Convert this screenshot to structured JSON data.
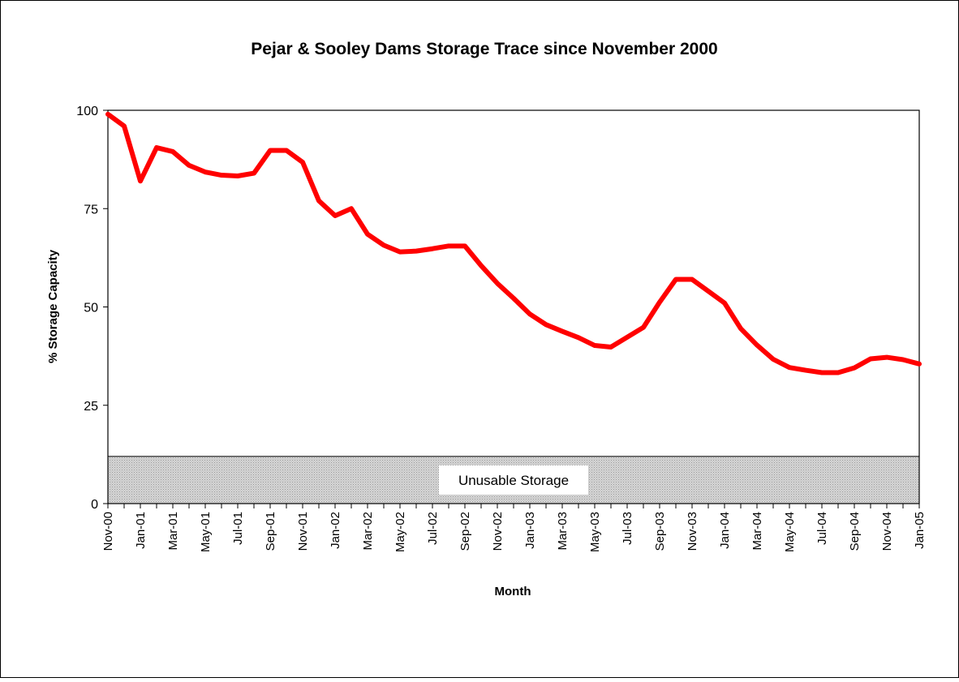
{
  "chart_data": {
    "type": "line",
    "title": "Pejar & Sooley Dams Storage Trace since November 2000",
    "xlabel": "Month",
    "ylabel": "% Storage Capacity",
    "ylim": [
      0,
      100
    ],
    "yticks": [
      0,
      25,
      50,
      75,
      100
    ],
    "xtick_labels": [
      "Nov-00",
      "Jan-01",
      "Mar-01",
      "May-01",
      "Jul-01",
      "Sep-01",
      "Nov-01",
      "Jan-02",
      "Mar-02",
      "May-02",
      "Jul-02",
      "Sep-02",
      "Nov-02",
      "Jan-03",
      "Mar-03",
      "May-03",
      "Jul-03",
      "Sep-03",
      "Nov-03",
      "Jan-04",
      "Mar-04",
      "May-04",
      "Jul-04",
      "Sep-04",
      "Nov-04",
      "Jan-05"
    ],
    "grid": false,
    "legend": "none",
    "line_color": "#ff0000",
    "band": {
      "label": "Unusable Storage",
      "from": 0,
      "to": 12,
      "color": "#c8c8c8"
    },
    "series": [
      {
        "x": [
          "Nov-00",
          "Dec-00",
          "Jan-01",
          "Feb-01",
          "Mar-01",
          "Apr-01",
          "May-01",
          "Jun-01",
          "Jul-01",
          "Aug-01",
          "Sep-01",
          "Oct-01",
          "Nov-01",
          "Dec-01",
          "Jan-02",
          "Feb-02",
          "Mar-02",
          "Apr-02",
          "May-02",
          "Jun-02",
          "Jul-02",
          "Aug-02",
          "Sep-02",
          "Oct-02",
          "Nov-02",
          "Dec-02",
          "Jan-03",
          "Feb-03",
          "Mar-03",
          "Apr-03",
          "May-03",
          "Jun-03",
          "Jul-03",
          "Aug-03",
          "Sep-03",
          "Oct-03",
          "Nov-03",
          "Dec-03",
          "Jan-04",
          "Feb-04",
          "Mar-04",
          "Apr-04",
          "May-04",
          "Jun-04",
          "Jul-04",
          "Aug-04",
          "Sep-04",
          "Oct-04",
          "Nov-04",
          "Dec-04",
          "Jan-05"
        ],
        "values": [
          99,
          96,
          82,
          90.5,
          89.5,
          86,
          84.3,
          83.5,
          83.3,
          84,
          89.8,
          89.8,
          86.8,
          77,
          73.2,
          75,
          68.5,
          65.7,
          64,
          64.2,
          64.8,
          65.5,
          65.5,
          60.5,
          56,
          52.2,
          48.2,
          45.5,
          43.8,
          42.2,
          40.2,
          39.8,
          42.3,
          44.8,
          51.2,
          57,
          57,
          54,
          51,
          44.5,
          40.3,
          36.7,
          34.6,
          33.9,
          33.3,
          33.3,
          34.5,
          36.8,
          37.2,
          36.6,
          35.5
        ]
      }
    ]
  }
}
